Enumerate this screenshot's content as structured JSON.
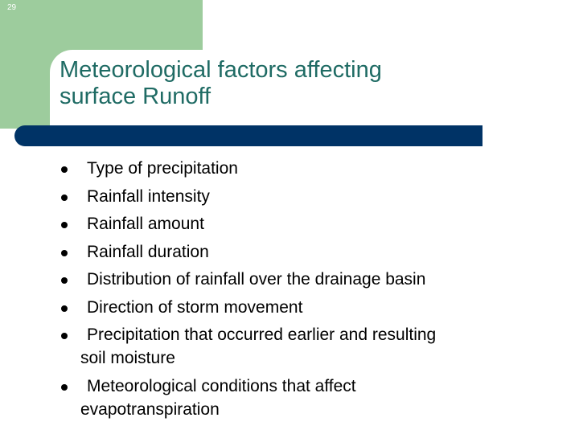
{
  "slide_number": "29",
  "title": {
    "line1": "Meteorological factors affecting",
    "line2": "surface Runoff"
  },
  "bullets": [
    {
      "text": "Type of precipitation"
    },
    {
      "text": "Rainfall intensity"
    },
    {
      "text": "Rainfall amount"
    },
    {
      "text": "Rainfall duration"
    },
    {
      "text": "Distribution of rainfall over the drainage basin"
    },
    {
      "text": "Direction of storm movement"
    },
    {
      "text": "Precipitation that occurred earlier and resulting",
      "continuation": "soil moisture"
    },
    {
      "text": "Meteorological conditions that affect",
      "continuation": "evapotranspiration"
    }
  ],
  "colors": {
    "accent_green": "#9dcc9d",
    "title_teal": "#1f6b64",
    "bar_navy": "#003366"
  }
}
